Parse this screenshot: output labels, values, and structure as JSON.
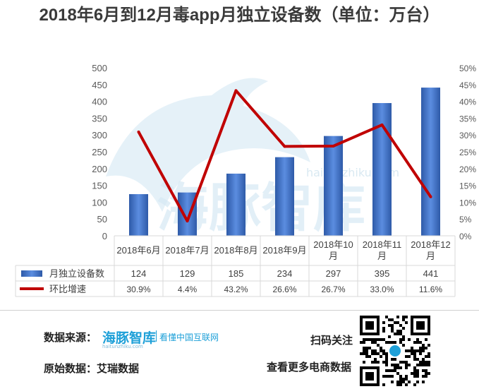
{
  "title": "2018年6月到12月毒app月独立设备数（单位：万台）",
  "chart_data": {
    "type": "bar",
    "categories": [
      "2018年6月",
      "2018年7月",
      "2018年8月",
      "2018年9月",
      "2018年10月",
      "2018年11月",
      "2018年12月"
    ],
    "series": [
      {
        "name": "月独立设备数",
        "type": "bar",
        "axis": "left",
        "color": "#4472c4",
        "values": [
          124,
          129,
          185,
          234,
          297,
          395,
          441
        ]
      },
      {
        "name": "环比增速",
        "type": "line",
        "axis": "right",
        "color": "#c00000",
        "values": [
          30.9,
          4.4,
          43.2,
          26.6,
          26.7,
          33.0,
          11.6
        ]
      }
    ],
    "table_values": [
      [
        "124",
        "129",
        "185",
        "234",
        "297",
        "395",
        "441"
      ],
      [
        "30.9%",
        "4.4%",
        "43.2%",
        "26.6%",
        "26.7%",
        "33.0%",
        "11.6%"
      ]
    ],
    "y_left": {
      "ylim": [
        0,
        500
      ],
      "ticks": [
        "0",
        "50",
        "100",
        "150",
        "200",
        "250",
        "300",
        "350",
        "400",
        "450",
        "500"
      ]
    },
    "y_right": {
      "ylim": [
        0,
        50
      ],
      "ticks": [
        "0%",
        "5%",
        "10%",
        "15%",
        "20%",
        "25%",
        "30%",
        "35%",
        "40%",
        "45%",
        "50%"
      ]
    },
    "grid": false,
    "legend": "data-table"
  },
  "watermark": {
    "name": "海豚智库",
    "url": "haitunzhiku.com"
  },
  "footer": {
    "source_label": "数据来源：",
    "brand_name": "海豚智库",
    "brand_url": "haitunzhiku.com",
    "brand_tagline": "看懂中国互联网",
    "origin_label": "原始数据：艾瑞数据",
    "scan_label": "扫码关注",
    "more_label": "查看更多电商数据"
  }
}
